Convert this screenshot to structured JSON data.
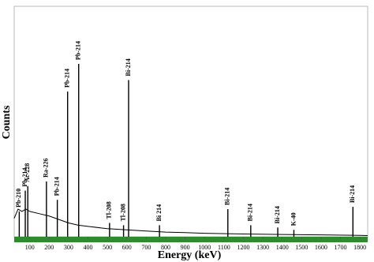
{
  "chart_data": {
    "type": "line",
    "x_label": "Energy (keV)",
    "y_label": "Counts",
    "xlim": [
      20,
      1840
    ],
    "ylim": [
      0,
      100
    ],
    "xticks": [
      100,
      200,
      300,
      400,
      500,
      600,
      700,
      800,
      900,
      1000,
      1100,
      1200,
      1300,
      1400,
      1500,
      1600,
      1700,
      1800
    ],
    "color": "#000000",
    "x": [
      20,
      40,
      60,
      80,
      100,
      150,
      200,
      250,
      300,
      350,
      400,
      500,
      600,
      700,
      800,
      900,
      1000,
      1200,
      1400,
      1600,
      1800,
      1840
    ],
    "values": [
      8,
      12,
      11,
      12,
      11,
      10,
      9,
      7.5,
      6,
      5,
      4.5,
      3.5,
      3,
      2.5,
      2,
      1.8,
      1.5,
      1.2,
      1,
      0.8,
      0.6,
      0.5
    ],
    "peaks": {
      "labels": [
        "Pb-210",
        "Pb-214",
        "Ac-228",
        "Ra-226",
        "Pb-214",
        "Pb-214",
        "Pb-214",
        "Tl-208",
        "Tl-208",
        "Bi-214",
        "Bi 214",
        "Bi-214",
        "Bi-214",
        "Bi-214",
        "K-40",
        "Bi-214"
      ],
      "x": [
        46,
        77,
        90,
        186,
        242,
        295,
        352,
        511,
        583,
        609,
        768,
        1120,
        1238,
        1377,
        1460,
        1764
      ],
      "values": [
        11,
        20,
        22,
        24,
        16,
        63,
        75,
        6,
        5,
        68,
        5,
        12,
        5,
        4,
        3,
        13
      ]
    }
  }
}
